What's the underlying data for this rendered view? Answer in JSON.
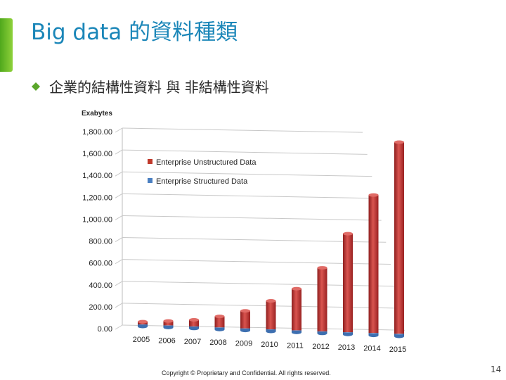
{
  "slide": {
    "title": "Big data 的資料種類",
    "bullet": "企業的結構性資料 與 非結構性資料",
    "footer": "Copyright © Proprietary and Confidential. All rights reserved.",
    "page_number": "14",
    "accent_color": "#1a86b8",
    "bar_color": "#6cbf2a"
  },
  "chart_data": {
    "type": "bar",
    "ylabel": "Exabytes",
    "ylim": [
      0,
      1800
    ],
    "yticks": [
      "0.00",
      "200.00",
      "400.00",
      "600.00",
      "800.00",
      "1,000.00",
      "1,200.00",
      "1,400.00",
      "1,600.00",
      "1,800.00"
    ],
    "categories": [
      "2005",
      "2006",
      "2007",
      "2008",
      "2009",
      "2010",
      "2011",
      "2012",
      "2013",
      "2014",
      "2015"
    ],
    "series": [
      {
        "name": "Enterprise Unstructured Data",
        "color": "#c0392b",
        "values": [
          25,
          40,
          60,
          100,
          160,
          260,
          380,
          580,
          900,
          1260,
          1750
        ]
      },
      {
        "name": "Enterprise Structured Data",
        "color": "#4a7fc1",
        "values": [
          5,
          6,
          8,
          10,
          12,
          14,
          16,
          18,
          20,
          22,
          24
        ]
      }
    ],
    "legend_position": "upper-left",
    "grid": true
  }
}
